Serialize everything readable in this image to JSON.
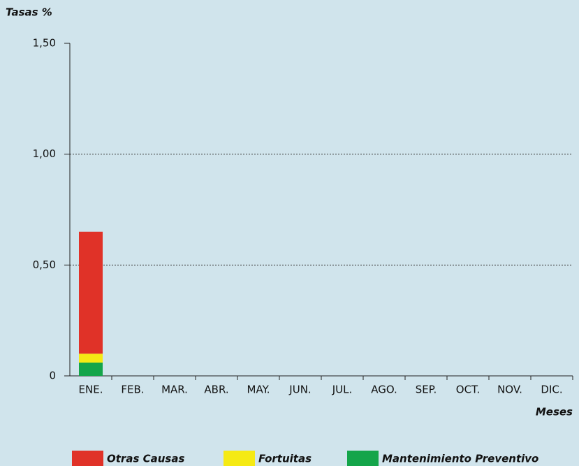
{
  "chart_data": {
    "type": "stacked_bar",
    "y_label": "Tasas %",
    "x_label": "Meses",
    "categories": [
      "ENE.",
      "FEB.",
      "MAR.",
      "ABR.",
      "MAY.",
      "JUN.",
      "JUL.",
      "AGO.",
      "SEP.",
      "OCT.",
      "NOV.",
      "DIC."
    ],
    "series": [
      {
        "name": "Otras Causas",
        "color": "#e03228",
        "values": [
          0.55,
          null,
          null,
          null,
          null,
          null,
          null,
          null,
          null,
          null,
          null,
          null
        ]
      },
      {
        "name": "Fortuitas",
        "color": "#f5ea14",
        "values": [
          0.04,
          null,
          null,
          null,
          null,
          null,
          null,
          null,
          null,
          null,
          null,
          null
        ]
      },
      {
        "name": "Mantenimiento Preventivo",
        "color": "#14a54a",
        "values": [
          0.06,
          null,
          null,
          null,
          null,
          null,
          null,
          null,
          null,
          null,
          null,
          null
        ]
      }
    ],
    "ylim": [
      0,
      1.5
    ],
    "yticks": [
      0,
      {
        "value": 0.5,
        "label": "0,50"
      },
      {
        "value": 1.0,
        "label": "1,00"
      },
      {
        "value": 1.5,
        "label": "1,50"
      }
    ],
    "grid": true
  }
}
